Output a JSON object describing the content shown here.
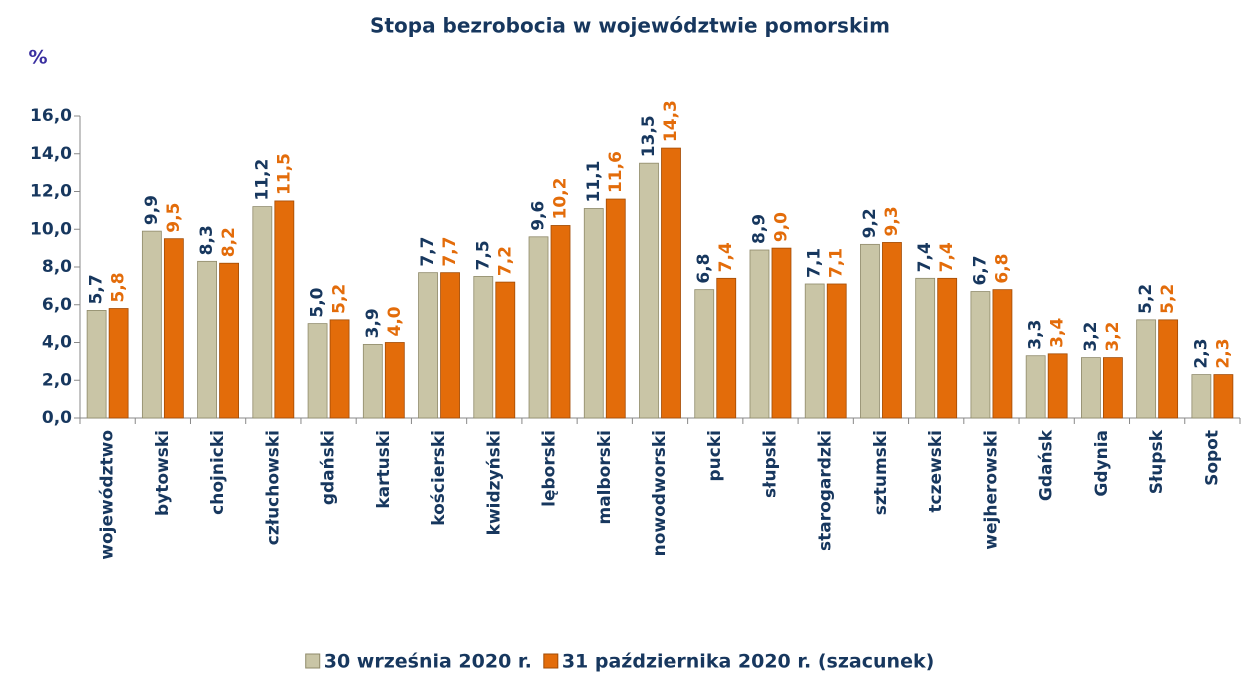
{
  "chart_data": {
    "type": "bar",
    "title": "Stopa bezrobocia w województwie pomorskim",
    "y_axis_label": "%",
    "categories": [
      "województwo",
      "bytowski",
      "chojnicki",
      "człuchowski",
      "gdański",
      "kartuski",
      "kościerski",
      "kwidzyński",
      "lęborski",
      "malborski",
      "nowodworski",
      "pucki",
      "słupski",
      "starogardzki",
      "sztumski",
      "tczewski",
      "wejherowski",
      "Gdańsk",
      "Gdynia",
      "Słupsk",
      "Sopot"
    ],
    "series": [
      {
        "name": "30 września 2020 r.",
        "color": "#c9c5a6",
        "label_color": "#17375e",
        "values": [
          5.7,
          9.9,
          8.3,
          11.2,
          5.0,
          3.9,
          7.7,
          7.5,
          9.6,
          11.1,
          13.5,
          6.8,
          8.9,
          7.1,
          9.2,
          7.4,
          6.7,
          3.3,
          3.2,
          5.2,
          2.3
        ],
        "value_labels": [
          "5,7",
          "9,9",
          "8,3",
          "11,2",
          "5,0",
          "3,9",
          "7,7",
          "7,5",
          "9,6",
          "11,1",
          "13,5",
          "6,8",
          "8,9",
          "7,1",
          "9,2",
          "7,4",
          "6,7",
          "3,3",
          "3,2",
          "5,2",
          "2,3"
        ]
      },
      {
        "name": "31 października 2020 r. (szacunek)",
        "color": "#e36c0a",
        "label_color": "#e36c0a",
        "values": [
          5.8,
          9.5,
          8.2,
          11.5,
          5.2,
          4.0,
          7.7,
          7.2,
          10.2,
          11.6,
          14.3,
          7.4,
          9.0,
          7.1,
          9.3,
          7.4,
          6.8,
          3.4,
          3.2,
          5.2,
          2.3
        ],
        "value_labels": [
          "5,8",
          "9,5",
          "8,2",
          "11,5",
          "5,2",
          "4,0",
          "7,7",
          "7,2",
          "10,2",
          "11,6",
          "14,3",
          "7,4",
          "9,0",
          "7,1",
          "9,3",
          "7,4",
          "6,8",
          "3,4",
          "3,2",
          "5,2",
          "2,3"
        ]
      }
    ],
    "ylim": [
      0,
      16
    ],
    "yticks": [
      {
        "value": 0,
        "label": "0,0"
      },
      {
        "value": 2,
        "label": "2,0"
      },
      {
        "value": 4,
        "label": "4,0"
      },
      {
        "value": 6,
        "label": "6,0"
      },
      {
        "value": 8,
        "label": "8,0"
      },
      {
        "value": 10,
        "label": "10,0"
      },
      {
        "value": 12,
        "label": "12,0"
      },
      {
        "value": 14,
        "label": "14,0"
      },
      {
        "value": 16,
        "label": "16,0"
      }
    ],
    "grid": false,
    "legend": "bottom"
  }
}
